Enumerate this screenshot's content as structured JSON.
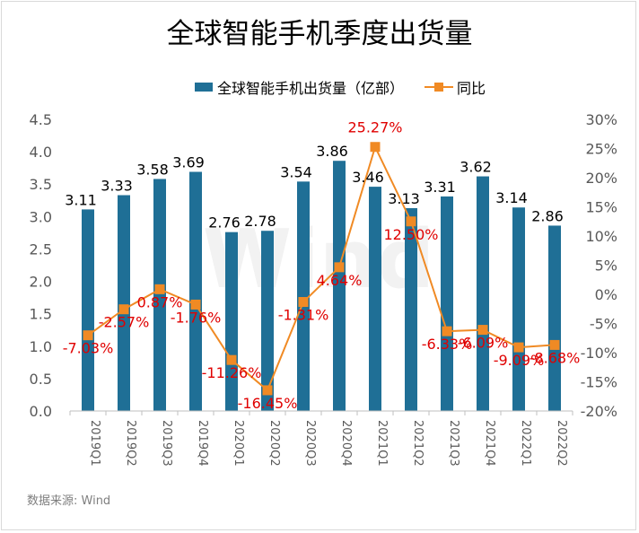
{
  "title": "全球智能手机季度出货量",
  "source": "数据来源: Wind",
  "watermark": "Wind",
  "chart_data": {
    "type": "bar",
    "title": "全球智能手机季度出货量",
    "categories": [
      "2019Q1",
      "2019Q2",
      "2019Q3",
      "2019Q4",
      "2020Q1",
      "2020Q2",
      "2020Q3",
      "2020Q4",
      "2021Q1",
      "2021Q2",
      "2021Q3",
      "2021Q4",
      "2022Q1",
      "2022Q2"
    ],
    "series": [
      {
        "name": "全球智能手机出货量（亿部）",
        "type": "bar",
        "axis": "left",
        "color": "#1f6f96",
        "values": [
          3.11,
          3.33,
          3.58,
          3.69,
          2.76,
          2.78,
          3.54,
          3.86,
          3.46,
          3.13,
          3.31,
          3.62,
          3.14,
          2.86
        ],
        "labels": [
          "3.11",
          "3.33",
          "3.58",
          "3.69",
          "2.76",
          "2.78",
          "3.54",
          "3.86",
          "3.46",
          "3.13",
          "3.31",
          "3.62",
          "3.14",
          "2.86"
        ]
      },
      {
        "name": "同比",
        "type": "line",
        "axis": "right",
        "color": "#f08a24",
        "values": [
          -7.03,
          -2.57,
          0.87,
          -1.76,
          -11.26,
          -16.45,
          -1.31,
          4.64,
          25.27,
          12.5,
          -6.33,
          -6.09,
          -9.09,
          -8.68
        ],
        "labels": [
          "-7.03%",
          "-2.57%",
          "0.87%",
          "-1.76%",
          "-11.26%",
          "-16.45%",
          "-1.31%",
          "4.64%",
          "25.27%",
          "12.50%",
          "-6.33%",
          "-6.09%",
          "-9.09%",
          "-8.68%"
        ]
      }
    ],
    "ylim_left": [
      0,
      4.5
    ],
    "ylim_right": [
      -20,
      30
    ],
    "left_ticks": [
      "0.0",
      "0.5",
      "1.0",
      "1.5",
      "2.0",
      "2.5",
      "3.0",
      "3.5",
      "4.0",
      "4.5"
    ],
    "right_ticks": [
      "-20%",
      "-15%",
      "-10%",
      "-5%",
      "0%",
      "5%",
      "10%",
      "15%",
      "20%",
      "25%",
      "30%"
    ],
    "legend_position": "top",
    "grid": false
  }
}
